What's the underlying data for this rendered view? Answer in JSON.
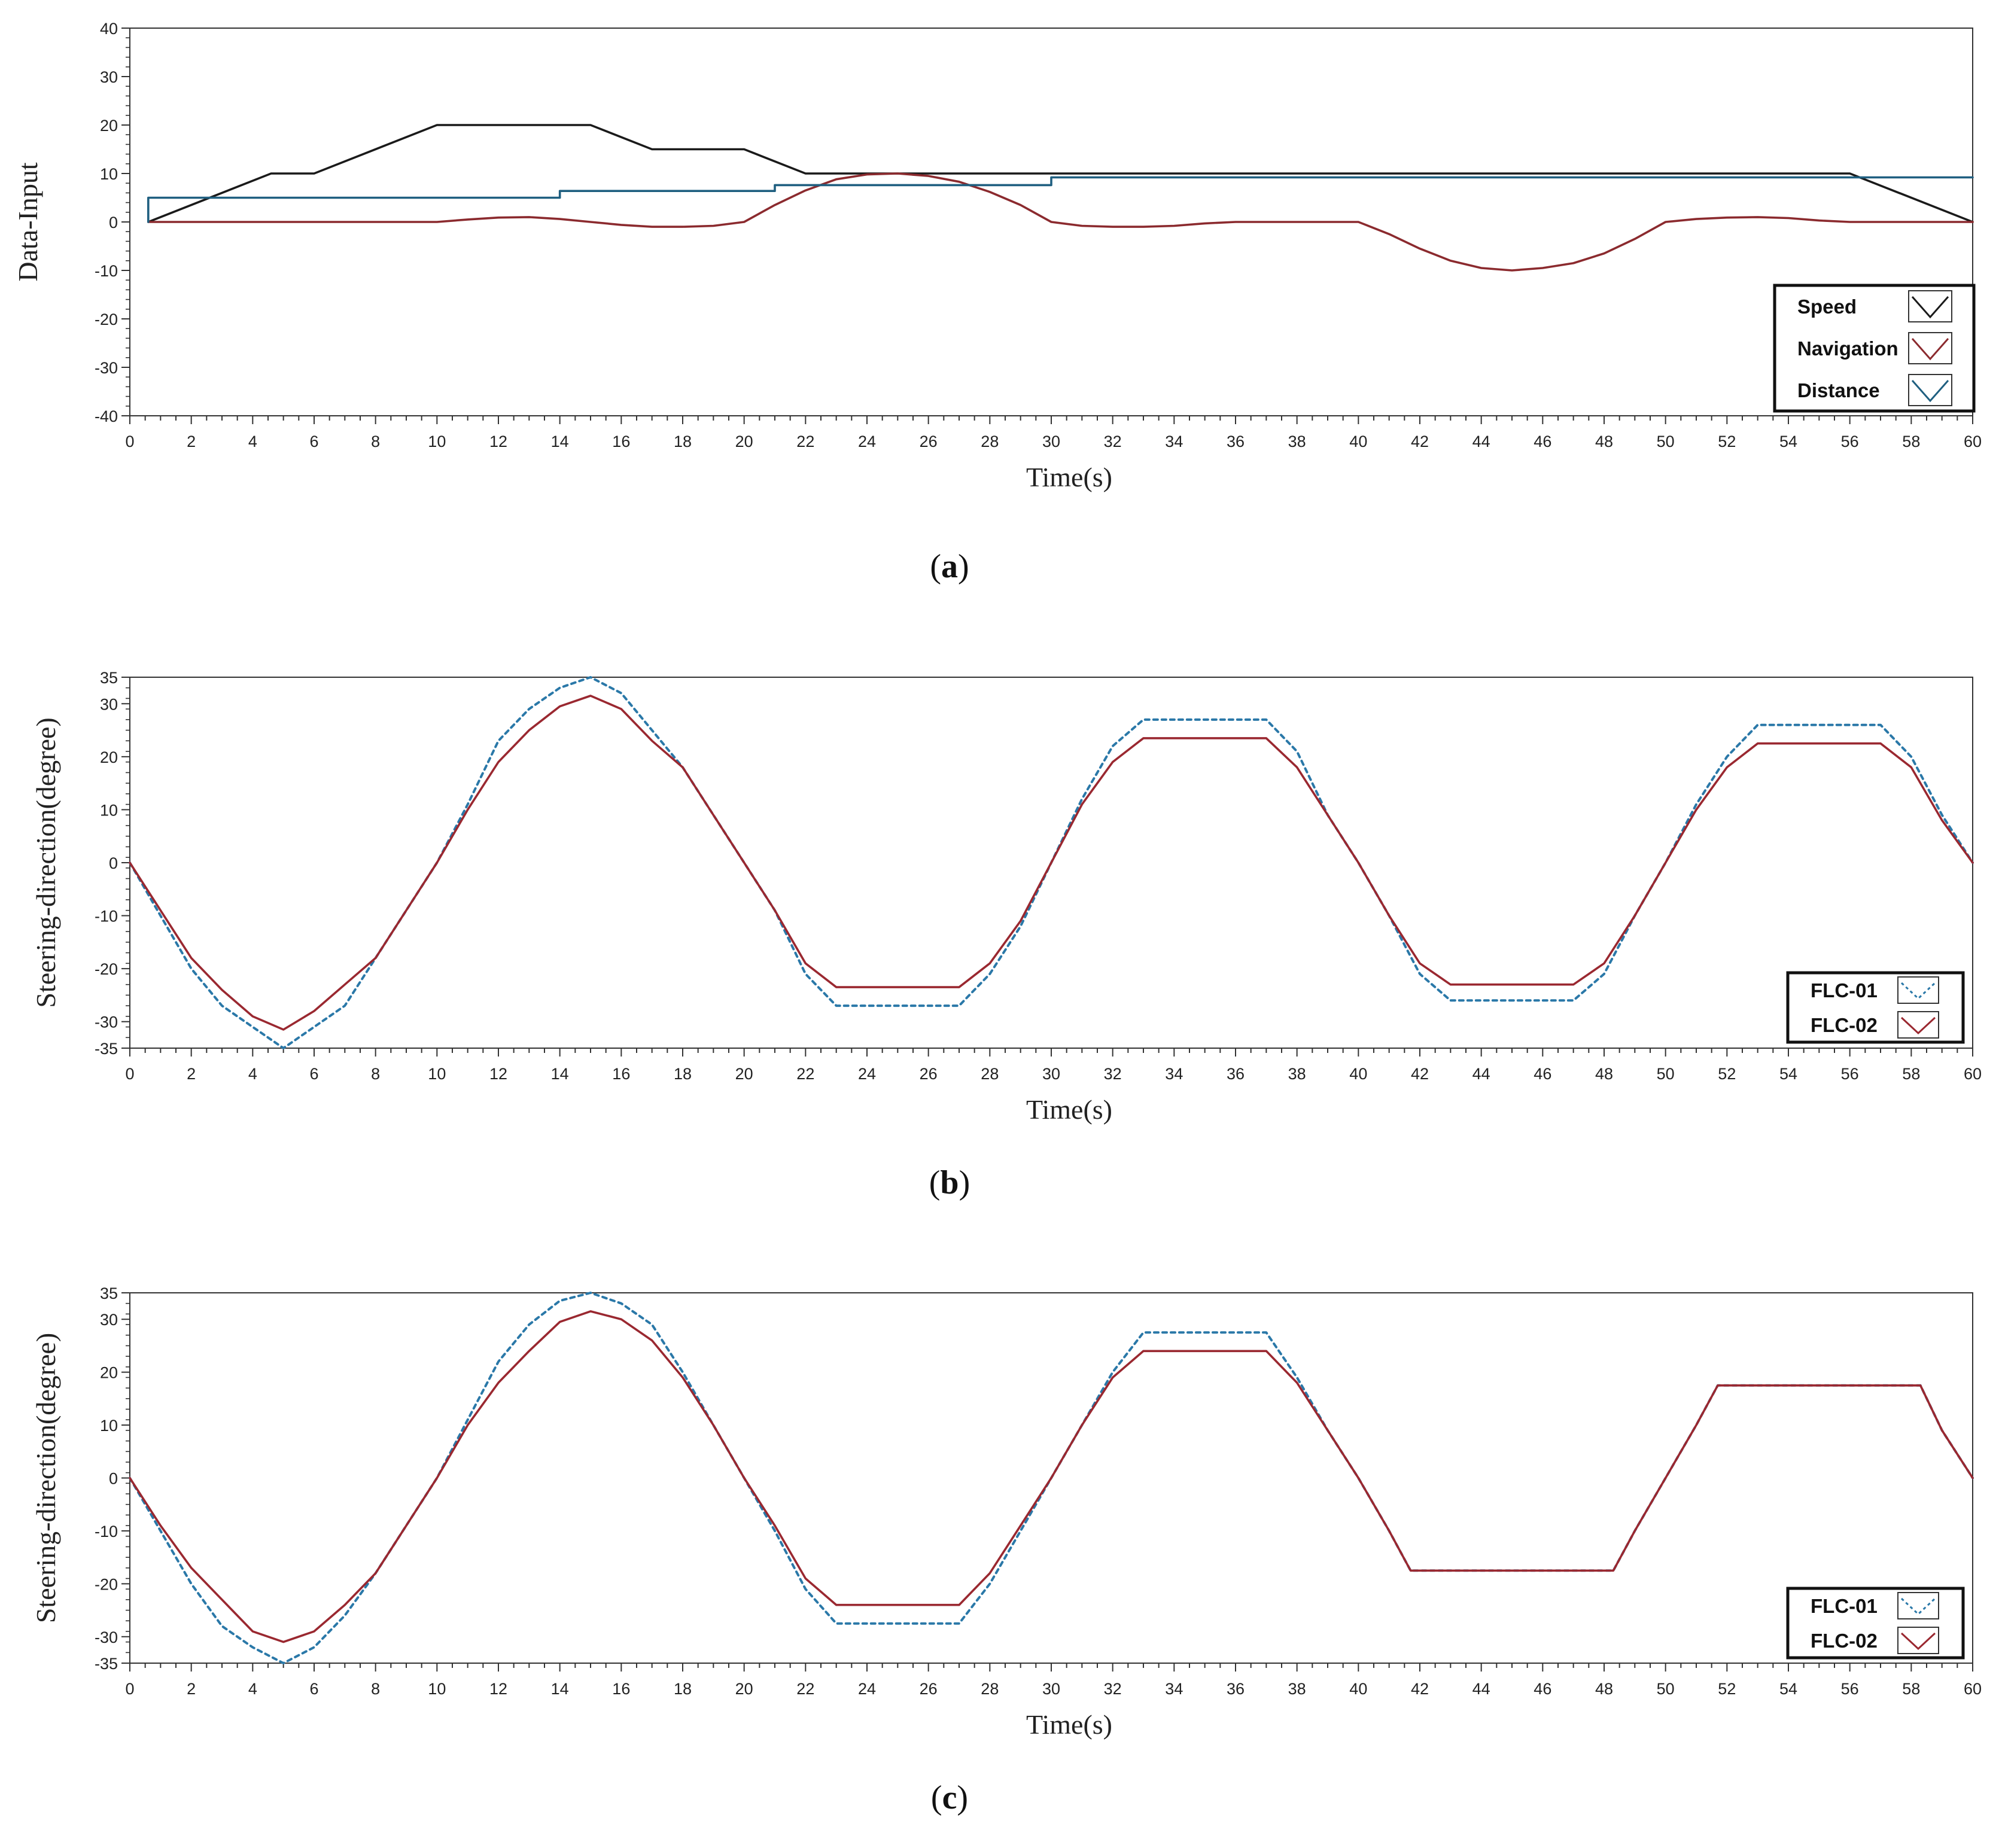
{
  "colors": {
    "speed": "#1a1a1a",
    "navigation": "#8b2a2e",
    "distance": "#1f5f80",
    "flc01": "#2a78a8",
    "flc02": "#9a2830"
  },
  "chart_data": [
    {
      "id": "a",
      "caption": "a",
      "type": "line",
      "xlabel": "Time(s)",
      "ylabel": "Data-Input",
      "xlim": [
        0,
        60
      ],
      "ylim": [
        -40,
        40
      ],
      "xticks": [
        "0",
        "2",
        "4",
        "6",
        "8",
        "10",
        "12",
        "14",
        "16",
        "18",
        "20",
        "22",
        "24",
        "26",
        "28",
        "30",
        "32",
        "34",
        "36",
        "38",
        "40",
        "42",
        "44",
        "46",
        "48",
        "50",
        "52",
        "54",
        "56",
        "58",
        "60"
      ],
      "yticks": [
        "40",
        "30",
        "20",
        "10",
        "0",
        "-10",
        "-20",
        "-30",
        "-40"
      ],
      "ytick_values": [
        40,
        30,
        20,
        10,
        0,
        -10,
        -20,
        -30,
        -40
      ],
      "legend_position": "bottom-right",
      "series": [
        {
          "name": "Speed",
          "style": "solid",
          "color_key": "speed",
          "x": [
            0.6,
            4.6,
            6,
            10,
            15,
            17,
            20,
            22,
            56,
            60
          ],
          "y": [
            0,
            10,
            10,
            20,
            20,
            15,
            15,
            10,
            10,
            0
          ]
        },
        {
          "name": "Navigation",
          "style": "solid",
          "color_key": "navigation",
          "x": [
            0.6,
            10,
            11,
            12,
            13,
            14,
            15,
            16,
            17,
            18,
            19,
            20,
            21,
            22,
            23,
            24,
            25,
            26,
            27,
            28,
            29,
            30,
            31,
            32,
            33,
            34,
            35,
            36,
            40,
            41,
            42,
            43,
            44,
            45,
            46,
            47,
            48,
            49,
            50,
            51,
            52,
            53,
            54,
            55,
            56,
            60
          ],
          "y": [
            0,
            0,
            0.5,
            0.9,
            1,
            0.6,
            0,
            -0.6,
            -1,
            -1,
            -0.8,
            0,
            3.5,
            6.5,
            8.8,
            9.8,
            10,
            9.5,
            8.3,
            6.2,
            3.5,
            0,
            -0.8,
            -1,
            -1,
            -0.8,
            -0.3,
            0,
            0,
            -2.5,
            -5.5,
            -8,
            -9.5,
            -10,
            -9.5,
            -8.5,
            -6.5,
            -3.5,
            0,
            0.6,
            0.9,
            1,
            0.8,
            0.3,
            0,
            0
          ]
        },
        {
          "name": "Distance",
          "style": "step",
          "color_key": "distance",
          "x": [
            0.6,
            0.6,
            14,
            14,
            21,
            21,
            30,
            30,
            60
          ],
          "y": [
            0,
            5,
            5,
            6.4,
            6.4,
            7.6,
            7.6,
            9.2,
            9.2
          ]
        }
      ]
    },
    {
      "id": "b",
      "caption": "b",
      "type": "line",
      "xlabel": "Time(s)",
      "ylabel": "Steering-direction(degree)",
      "xlim": [
        0,
        60
      ],
      "ylim": [
        -35,
        35
      ],
      "xticks": [
        "0",
        "2",
        "4",
        "6",
        "8",
        "10",
        "12",
        "14",
        "16",
        "18",
        "20",
        "22",
        "24",
        "26",
        "28",
        "30",
        "32",
        "34",
        "36",
        "38",
        "40",
        "42",
        "44",
        "46",
        "48",
        "50",
        "52",
        "54",
        "56",
        "58",
        "60"
      ],
      "yticks": [
        "35",
        "30",
        "20",
        "10",
        "0",
        "-10",
        "-20",
        "-30",
        "-35"
      ],
      "ytick_values": [
        35,
        30,
        20,
        10,
        0,
        -10,
        -20,
        -30,
        -35
      ],
      "legend_position": "bottom-right",
      "series": [
        {
          "name": "FLC-01",
          "style": "dotted",
          "color_key": "flc01",
          "x": [
            0,
            1,
            2,
            3,
            4,
            5,
            6,
            7,
            8,
            9,
            10,
            11,
            12,
            13,
            14,
            15,
            16,
            17,
            18,
            19,
            20,
            21,
            22,
            23,
            27,
            28,
            29,
            30,
            31,
            32,
            33,
            37,
            38,
            39,
            40,
            41,
            42,
            43,
            47,
            48,
            49,
            50,
            51,
            52,
            53,
            57,
            58,
            59,
            60
          ],
          "y": [
            0,
            -10,
            -20,
            -27,
            -31,
            -35,
            -31,
            -27,
            -18,
            -9,
            0,
            11,
            23,
            29,
            33,
            35,
            32,
            25,
            18,
            9,
            0,
            -9,
            -21,
            -27,
            -27,
            -21,
            -12,
            0,
            12,
            22,
            27,
            27,
            21,
            9,
            0,
            -10,
            -21,
            -26,
            -26,
            -21,
            -10,
            0,
            11,
            20,
            26,
            26,
            20,
            9,
            0
          ]
        },
        {
          "name": "FLC-02",
          "style": "solid",
          "color_key": "flc02",
          "x": [
            0,
            1,
            2,
            3,
            4,
            5,
            6,
            7,
            8,
            9,
            10,
            11,
            12,
            13,
            14,
            15,
            16,
            17,
            18,
            19,
            20,
            21,
            22,
            23,
            27,
            28,
            29,
            30,
            31,
            32,
            33,
            37,
            38,
            39,
            40,
            41,
            42,
            43,
            47,
            48,
            49,
            50,
            51,
            52,
            53,
            57,
            58,
            59,
            60
          ],
          "y": [
            0,
            -9,
            -18,
            -24,
            -29,
            -31.5,
            -28,
            -23,
            -18,
            -9,
            0,
            10,
            19,
            25,
            29.5,
            31.5,
            29,
            23,
            18,
            9,
            0,
            -9,
            -19,
            -23.5,
            -23.5,
            -19,
            -11,
            0,
            11,
            19,
            23.5,
            23.5,
            18,
            9,
            0,
            -10,
            -19,
            -23,
            -23,
            -19,
            -10,
            0,
            10,
            18,
            22.5,
            22.5,
            18,
            8,
            0
          ]
        }
      ]
    },
    {
      "id": "c",
      "caption": "c",
      "type": "line",
      "xlabel": "Time(s)",
      "ylabel": "Steering-direction(degree)",
      "xlim": [
        0,
        60
      ],
      "ylim": [
        -35,
        35
      ],
      "xticks": [
        "0",
        "2",
        "4",
        "6",
        "8",
        "10",
        "12",
        "14",
        "16",
        "18",
        "20",
        "22",
        "24",
        "26",
        "28",
        "30",
        "32",
        "34",
        "36",
        "38",
        "40",
        "42",
        "44",
        "46",
        "48",
        "50",
        "52",
        "54",
        "56",
        "58",
        "60"
      ],
      "yticks": [
        "35",
        "30",
        "20",
        "10",
        "0",
        "-10",
        "-20",
        "-30",
        "-35"
      ],
      "ytick_values": [
        35,
        30,
        20,
        10,
        0,
        -10,
        -20,
        -30,
        -35
      ],
      "legend_position": "bottom-right",
      "series": [
        {
          "name": "FLC-01",
          "style": "dotted",
          "color_key": "flc01",
          "x": [
            0,
            1,
            2,
            3,
            4,
            5,
            6,
            7,
            8,
            9,
            10,
            11,
            12,
            13,
            14,
            15,
            16,
            17,
            18,
            19,
            20,
            21,
            22,
            23,
            27,
            28,
            29,
            30,
            31,
            32,
            33,
            37,
            38,
            39,
            40,
            41,
            41.7,
            48.3,
            49,
            50,
            51,
            51.7,
            58.3,
            59,
            60
          ],
          "y": [
            0,
            -10,
            -20,
            -28,
            -32,
            -35,
            -32,
            -26,
            -18,
            -9,
            0,
            11,
            22,
            29,
            33.5,
            35,
            33,
            29,
            20,
            10,
            0,
            -10,
            -21,
            -27.5,
            -27.5,
            -20,
            -10,
            0,
            10,
            20,
            27.5,
            27.5,
            19,
            9,
            0,
            -10,
            -17.5,
            -17.5,
            -10,
            0,
            10,
            17.5,
            17.5,
            9,
            0
          ]
        },
        {
          "name": "FLC-02",
          "style": "solid",
          "color_key": "flc02",
          "x": [
            0,
            1,
            2,
            3,
            4,
            5,
            6,
            7,
            8,
            9,
            10,
            11,
            12,
            13,
            14,
            15,
            16,
            17,
            18,
            19,
            20,
            21,
            22,
            23,
            27,
            28,
            29,
            30,
            31,
            32,
            33,
            37,
            38,
            39,
            40,
            41,
            41.7,
            48.3,
            49,
            50,
            51,
            51.7,
            58.3,
            59,
            60
          ],
          "y": [
            0,
            -9,
            -17,
            -23,
            -29,
            -31,
            -29,
            -24,
            -18,
            -9,
            0,
            10,
            18,
            24,
            29.5,
            31.5,
            30,
            26,
            19,
            10,
            0,
            -9,
            -19,
            -24,
            -24,
            -18,
            -9,
            0,
            10,
            19,
            24,
            24,
            18,
            9,
            0,
            -10,
            -17.5,
            -17.5,
            -10,
            0,
            10,
            17.5,
            17.5,
            9,
            0
          ]
        }
      ]
    }
  ]
}
